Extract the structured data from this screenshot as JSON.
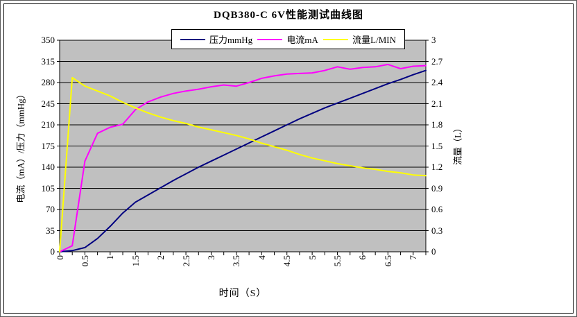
{
  "title": "DQB380-C 6V性能测试曲线图",
  "chart_data": {
    "type": "line",
    "title": "DQB380-C 6V性能测试曲线图",
    "xlabel": "时间（S）",
    "ylabel_left": "电流（mA）/压力（mmHg）",
    "ylabel_right": "流量（L）",
    "plot_bg": "#c0c0c0",
    "grid": true,
    "legend_position": "top",
    "x_axis": {
      "min": 0,
      "max": 7.25,
      "tick_step": 0.25,
      "label_step": 0.5,
      "label_max": 7
    },
    "left_axis": {
      "min": 0,
      "max": 350,
      "step": 35
    },
    "right_axis": {
      "min": 0,
      "max": 3,
      "step": 0.3
    },
    "x": [
      0,
      0.25,
      0.5,
      0.75,
      1,
      1.25,
      1.5,
      1.75,
      2,
      2.25,
      2.5,
      2.75,
      3,
      3.25,
      3.5,
      3.75,
      4,
      4.25,
      4.5,
      4.75,
      5,
      5.25,
      5.5,
      5.75,
      6,
      6.25,
      6.5,
      6.75,
      7,
      7.25
    ],
    "series": [
      {
        "name": "压力mmHg",
        "axis": "left",
        "color": "#000080",
        "values": [
          0,
          2,
          7,
          22,
          42,
          64,
          82,
          94,
          106,
          118,
          129,
          140,
          150,
          160,
          170,
          180,
          190,
          200,
          210,
          220,
          229,
          238,
          246,
          254,
          262,
          270,
          278,
          285,
          293,
          300
        ]
      },
      {
        "name": "电流mA",
        "axis": "left",
        "color": "#ff00ff",
        "values": [
          0,
          10,
          150,
          196,
          206,
          211,
          235,
          248,
          256,
          262,
          266,
          269,
          273,
          276,
          274,
          280,
          287,
          291,
          294,
          295,
          296,
          300,
          306,
          302,
          305,
          306,
          310,
          303,
          307,
          308
        ]
      },
      {
        "name": "流量L/MIN",
        "axis": "right",
        "color": "#ffff00",
        "values": [
          0,
          2.47,
          2.35,
          2.28,
          2.21,
          2.12,
          2.04,
          1.97,
          1.91,
          1.86,
          1.82,
          1.77,
          1.73,
          1.69,
          1.65,
          1.6,
          1.54,
          1.49,
          1.44,
          1.38,
          1.33,
          1.29,
          1.25,
          1.22,
          1.19,
          1.17,
          1.14,
          1.12,
          1.09,
          1.08
        ]
      }
    ]
  }
}
